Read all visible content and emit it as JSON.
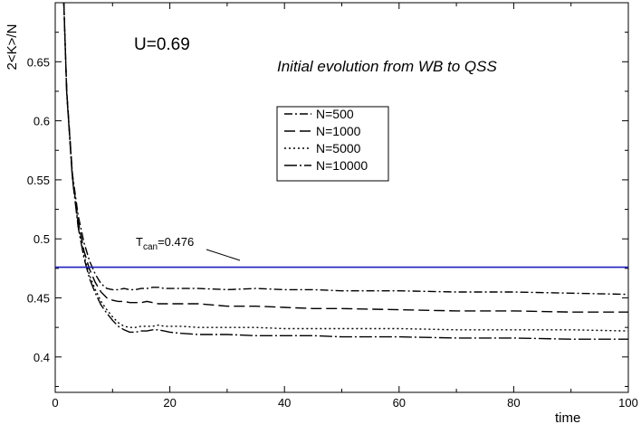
{
  "chart_data": {
    "type": "line",
    "annotation_u": "U=0.69",
    "annotation_subtitle": "Initial evolution from WB to QSS",
    "xlabel": "time",
    "ylabel": "2<K>/N",
    "xlim": [
      0,
      100
    ],
    "ylim": [
      0.37,
      0.7
    ],
    "x_ticks": [
      "0",
      "20",
      "40",
      "60",
      "80",
      "100"
    ],
    "x_tick_values": [
      0,
      20,
      40,
      60,
      80,
      100
    ],
    "y_ticks": [
      "0.4",
      "0.45",
      "0.5",
      "0.55",
      "0.6",
      "0.65"
    ],
    "y_tick_values": [
      0.4,
      0.45,
      0.5,
      0.55,
      0.6,
      0.65
    ],
    "grid": false,
    "legend_position": "center-right",
    "reference_line": {
      "label_main": "T",
      "label_sub": "can",
      "label_rest": "=0.476",
      "value": 0.476,
      "color": "#1f1fbf"
    },
    "series": [
      {
        "name": "N=500",
        "dash": "9,3,2,3",
        "x": [
          1.5,
          2,
          3,
          4,
          5,
          6,
          7,
          8,
          9,
          10,
          11,
          12,
          13,
          14,
          15,
          16,
          17,
          18,
          19,
          20,
          22,
          25,
          30,
          35,
          40,
          45,
          50,
          60,
          70,
          80,
          90,
          100
        ],
        "y": [
          0.7,
          0.625,
          0.555,
          0.52,
          0.497,
          0.481,
          0.47,
          0.462,
          0.458,
          0.457,
          0.457,
          0.458,
          0.457,
          0.457,
          0.458,
          0.458,
          0.459,
          0.459,
          0.458,
          0.458,
          0.458,
          0.458,
          0.457,
          0.458,
          0.457,
          0.457,
          0.456,
          0.456,
          0.455,
          0.455,
          0.454,
          0.453
        ]
      },
      {
        "name": "N=1000",
        "dash": "12,5",
        "x": [
          1.5,
          2,
          3,
          4,
          5,
          6,
          7,
          8,
          9,
          10,
          11,
          12,
          13,
          14,
          15,
          16,
          17,
          18,
          19,
          20,
          22,
          25,
          30,
          35,
          40,
          45,
          50,
          60,
          70,
          80,
          90,
          100
        ],
        "y": [
          0.7,
          0.625,
          0.553,
          0.515,
          0.49,
          0.474,
          0.463,
          0.455,
          0.45,
          0.448,
          0.447,
          0.447,
          0.446,
          0.446,
          0.446,
          0.447,
          0.446,
          0.445,
          0.445,
          0.445,
          0.445,
          0.445,
          0.443,
          0.443,
          0.442,
          0.441,
          0.441,
          0.44,
          0.439,
          0.439,
          0.438,
          0.438
        ]
      },
      {
        "name": "N=5000",
        "dash": "2,3",
        "x": [
          1.5,
          2,
          3,
          4,
          5,
          6,
          7,
          8,
          9,
          10,
          11,
          12,
          13,
          14,
          15,
          16,
          17,
          18,
          19,
          20,
          22,
          25,
          30,
          35,
          40,
          45,
          50,
          60,
          70,
          80,
          90,
          100
        ],
        "y": [
          0.7,
          0.624,
          0.552,
          0.512,
          0.486,
          0.469,
          0.457,
          0.447,
          0.44,
          0.434,
          0.429,
          0.426,
          0.425,
          0.425,
          0.426,
          0.426,
          0.426,
          0.427,
          0.426,
          0.426,
          0.426,
          0.425,
          0.425,
          0.425,
          0.424,
          0.424,
          0.424,
          0.424,
          0.423,
          0.423,
          0.423,
          0.422
        ]
      },
      {
        "name": "N=10000",
        "dash": "14,3,2,3",
        "x": [
          1.5,
          2,
          3,
          4,
          5,
          6,
          7,
          8,
          9,
          10,
          11,
          12,
          13,
          14,
          15,
          16,
          17,
          18,
          19,
          20,
          22,
          25,
          30,
          35,
          40,
          45,
          50,
          60,
          70,
          80,
          90,
          100
        ],
        "y": [
          0.7,
          0.623,
          0.551,
          0.51,
          0.484,
          0.466,
          0.454,
          0.444,
          0.437,
          0.431,
          0.426,
          0.423,
          0.421,
          0.421,
          0.422,
          0.422,
          0.423,
          0.423,
          0.422,
          0.421,
          0.42,
          0.419,
          0.419,
          0.418,
          0.418,
          0.418,
          0.417,
          0.417,
          0.416,
          0.416,
          0.415,
          0.415
        ]
      }
    ]
  }
}
